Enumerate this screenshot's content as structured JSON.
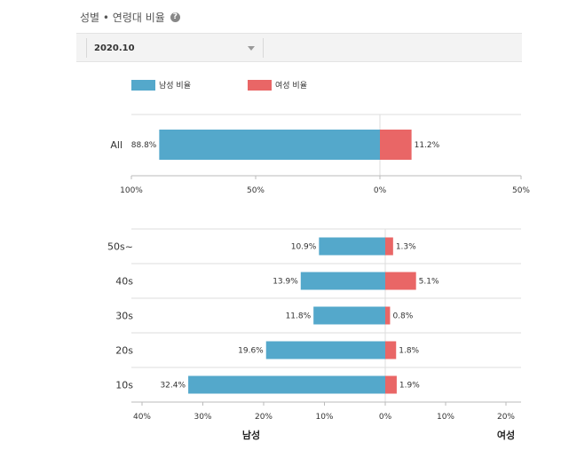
{
  "header": {
    "title": "성별 • 연령대 비율",
    "help_icon": "?"
  },
  "filter": {
    "selected": "2020.10"
  },
  "colors": {
    "male": "#54a8cb",
    "female": "#e96666",
    "grid": "#dddddd",
    "axis": "#bbbbbb"
  },
  "legend": [
    {
      "label": "남성 비율",
      "color": "#54a8cb"
    },
    {
      "label": "여성 비율",
      "color": "#e96666"
    }
  ],
  "chart_data": [
    {
      "type": "bar",
      "orientation": "horizontal-diverging",
      "categories": [
        "All"
      ],
      "series": [
        {
          "name": "남성 비율",
          "values": [
            88.8
          ]
        },
        {
          "name": "여성 비율",
          "values": [
            11.2
          ]
        }
      ],
      "data_labels": {
        "male": [
          "88.8%"
        ],
        "female": [
          "11.2%"
        ]
      },
      "x_ticks": [
        "100%",
        "50%",
        "0%",
        "50%"
      ],
      "xlim_male": [
        0,
        100
      ],
      "xlim_female": [
        0,
        50
      ]
    },
    {
      "type": "bar",
      "orientation": "horizontal-diverging",
      "categories": [
        "50s~",
        "40s",
        "30s",
        "20s",
        "10s"
      ],
      "series": [
        {
          "name": "남성 비율",
          "values": [
            10.9,
            13.9,
            11.8,
            19.6,
            32.4
          ]
        },
        {
          "name": "여성 비율",
          "values": [
            1.3,
            5.1,
            0.8,
            1.8,
            1.9
          ]
        }
      ],
      "data_labels": {
        "male": [
          "10.9%",
          "13.9%",
          "11.8%",
          "19.6%",
          "32.4%"
        ],
        "female": [
          "1.3%",
          "5.1%",
          "0.8%",
          "1.8%",
          "1.9%"
        ]
      },
      "x_ticks": [
        "40%",
        "30%",
        "20%",
        "10%",
        "0%",
        "10%",
        "20%"
      ],
      "xlim_male": [
        0,
        40
      ],
      "xlim_female": [
        0,
        20
      ],
      "xlabel_left": "남성",
      "xlabel_right": "여성"
    }
  ]
}
